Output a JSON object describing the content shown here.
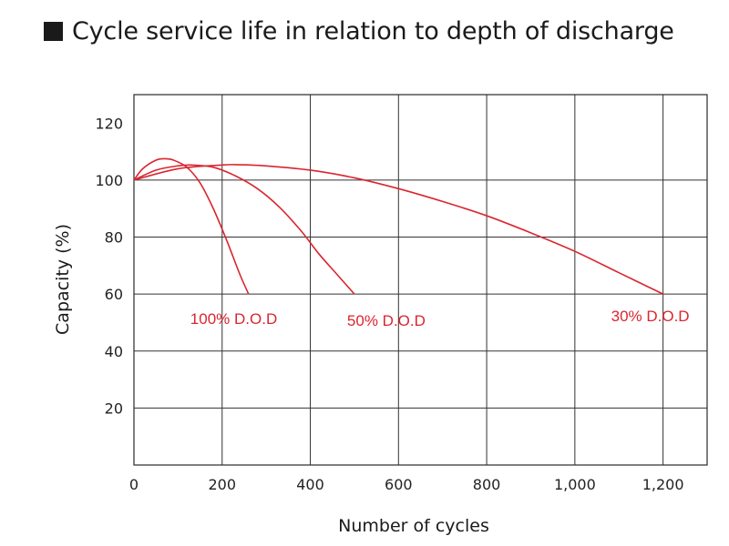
{
  "title": "Cycle service life in relation to depth of discharge",
  "chart_data": {
    "type": "line",
    "title": "Cycle service life in relation to depth of discharge",
    "xlabel": "Number of cycles",
    "ylabel": "Capacity (%)",
    "xlim": [
      0,
      1300
    ],
    "ylim": [
      0,
      130
    ],
    "x_ticks": [
      0,
      200,
      400,
      600,
      800,
      1000,
      1200
    ],
    "x_tick_labels": [
      "0",
      "200",
      "400",
      "600",
      "800",
      "1,000",
      "1,200"
    ],
    "y_ticks": [
      20,
      40,
      60,
      80,
      100,
      120
    ],
    "y_tick_labels": [
      "20",
      "40",
      "60",
      "80",
      "100",
      "120"
    ],
    "grid": true,
    "line_color": "#d9262f",
    "series": [
      {
        "name": "100% D.O.D",
        "x": [
          0,
          20,
          50,
          70,
          90,
          120,
          150,
          180,
          210,
          240,
          260
        ],
        "y": [
          100,
          104,
          107,
          107.5,
          107,
          104.5,
          99,
          90,
          79,
          67,
          60
        ]
      },
      {
        "name": "50% D.O.D",
        "x": [
          0,
          50,
          100,
          130,
          180,
          230,
          280,
          330,
          380,
          420,
          460,
          500
        ],
        "y": [
          100,
          103.5,
          105,
          105.3,
          104.5,
          101.5,
          97,
          90.5,
          82,
          74,
          67,
          60
        ]
      },
      {
        "name": "30% D.O.D",
        "x": [
          0,
          100,
          200,
          240,
          300,
          400,
          500,
          600,
          700,
          800,
          900,
          1000,
          1100,
          1200
        ],
        "y": [
          100,
          104,
          105.3,
          105.4,
          105,
          103.5,
          100.8,
          97,
          92.5,
          87.5,
          81.5,
          75,
          67.5,
          60
        ]
      }
    ]
  }
}
